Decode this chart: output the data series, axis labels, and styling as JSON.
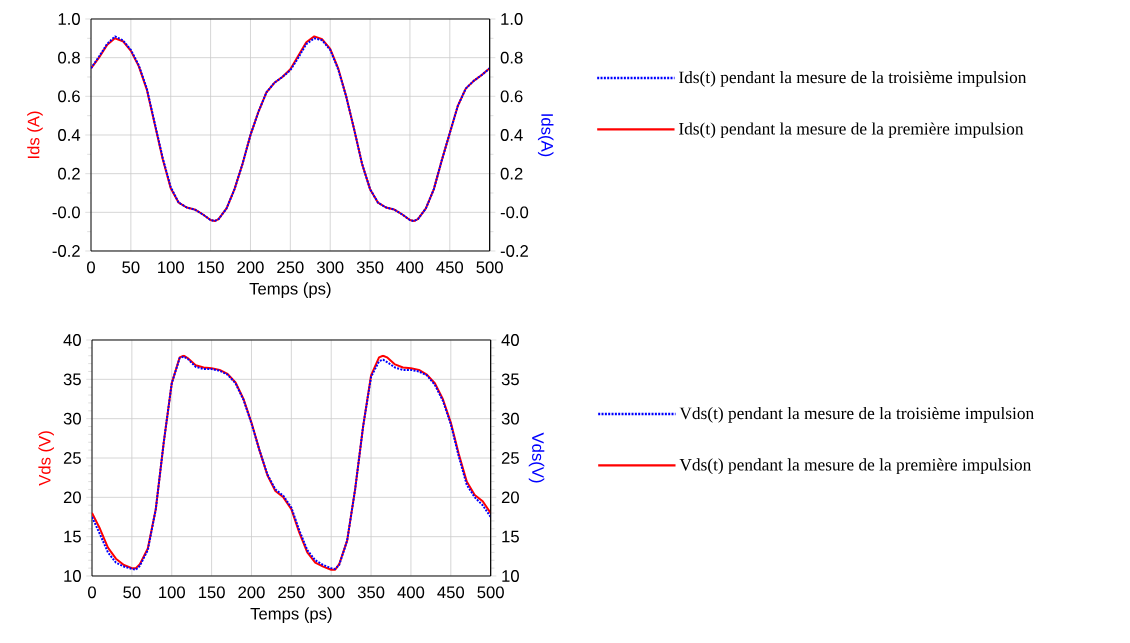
{
  "chart_data": [
    {
      "type": "line",
      "xlabel": "Temps (ps)",
      "ylabel": "Ids (A)",
      "y2label": "Ids(A)",
      "xlim": [
        0,
        500
      ],
      "xticks": [
        0,
        50,
        100,
        150,
        200,
        250,
        300,
        350,
        400,
        450,
        500
      ],
      "ylim": [
        -0.2,
        1.0
      ],
      "yticks": [
        -0.2,
        {
          "value": 0,
          "label": "-0.0"
        },
        0.2,
        0.4,
        0.6,
        0.8,
        {
          "value": 1,
          "label": "1.0"
        }
      ],
      "y2lim": [
        -0.2,
        1.0
      ],
      "y2ticks": [
        -0.2,
        {
          "value": 0,
          "label": "-0.0"
        },
        0.2,
        0.4,
        0.6,
        0.8,
        {
          "value": 1,
          "label": "1.0"
        }
      ],
      "grid": true,
      "legend": "right",
      "x": [
        0,
        10,
        20,
        30,
        40,
        50,
        60,
        70,
        80,
        90,
        100,
        110,
        120,
        130,
        140,
        150,
        155,
        160,
        170,
        180,
        190,
        200,
        210,
        220,
        230,
        240,
        250,
        260,
        270,
        280,
        290,
        300,
        310,
        320,
        330,
        340,
        350,
        360,
        370,
        380,
        390,
        400,
        405,
        410,
        420,
        430,
        440,
        450,
        460,
        470,
        480,
        490,
        500
      ],
      "series": [
        {
          "name": "Ids(t) pendant la mesure de la première impulsion",
          "color": "#ff0000",
          "line_style": "solid",
          "values": [
            0.745,
            0.8,
            0.865,
            0.9,
            0.885,
            0.835,
            0.755,
            0.635,
            0.455,
            0.275,
            0.125,
            0.05,
            0.025,
            0.015,
            -0.01,
            -0.04,
            -0.045,
            -0.035,
            0.02,
            0.12,
            0.25,
            0.4,
            0.52,
            0.62,
            0.67,
            0.7,
            0.74,
            0.81,
            0.88,
            0.91,
            0.895,
            0.845,
            0.745,
            0.6,
            0.43,
            0.25,
            0.12,
            0.05,
            0.025,
            0.015,
            -0.01,
            -0.04,
            -0.045,
            -0.035,
            0.02,
            0.12,
            0.27,
            0.41,
            0.55,
            0.64,
            0.68,
            0.71,
            0.745
          ]
        },
        {
          "name": "Ids(t) pendant la mesure de la troisième impulsion",
          "color": "#0000ff",
          "line_style": "dotted",
          "values": [
            0.745,
            0.805,
            0.87,
            0.91,
            0.89,
            0.84,
            0.76,
            0.64,
            0.46,
            0.28,
            0.13,
            0.05,
            0.025,
            0.015,
            -0.01,
            -0.04,
            -0.045,
            -0.035,
            0.02,
            0.12,
            0.25,
            0.4,
            0.52,
            0.62,
            0.67,
            0.7,
            0.735,
            0.8,
            0.87,
            0.9,
            0.89,
            0.84,
            0.74,
            0.6,
            0.43,
            0.25,
            0.12,
            0.05,
            0.025,
            0.015,
            -0.01,
            -0.04,
            -0.045,
            -0.035,
            0.02,
            0.12,
            0.27,
            0.41,
            0.55,
            0.64,
            0.68,
            0.71,
            0.745
          ]
        }
      ]
    },
    {
      "type": "line",
      "xlabel": "Temps (ps)",
      "ylabel": "Vds (V)",
      "y2label": "Vds(V)",
      "xlim": [
        0,
        500
      ],
      "xticks": [
        0,
        50,
        100,
        150,
        200,
        250,
        300,
        350,
        400,
        450,
        500
      ],
      "ylim": [
        10,
        40
      ],
      "yticks": [
        10,
        15,
        20,
        25,
        30,
        35,
        40
      ],
      "y2lim": [
        10,
        40
      ],
      "y2ticks": [
        10,
        15,
        20,
        25,
        30,
        35,
        40
      ],
      "grid": true,
      "legend": "right",
      "x": [
        0,
        10,
        20,
        30,
        40,
        50,
        55,
        60,
        70,
        80,
        90,
        100,
        110,
        115,
        120,
        130,
        140,
        150,
        160,
        170,
        180,
        190,
        200,
        210,
        220,
        230,
        240,
        250,
        260,
        270,
        280,
        290,
        300,
        305,
        310,
        320,
        330,
        340,
        350,
        360,
        365,
        370,
        380,
        390,
        400,
        410,
        420,
        430,
        440,
        450,
        460,
        470,
        480,
        490,
        500
      ],
      "series": [
        {
          "name": "Vds(t) pendant la mesure de la première impulsion",
          "color": "#ff0000",
          "line_style": "solid",
          "values": [
            18,
            16,
            13.6,
            12.2,
            11.4,
            11.0,
            11.0,
            11.5,
            13.5,
            18.5,
            27,
            34.5,
            37.8,
            38.0,
            37.7,
            36.8,
            36.5,
            36.4,
            36.2,
            35.7,
            34.6,
            32.5,
            29.5,
            26,
            22.8,
            20.8,
            20.0,
            18.5,
            15.5,
            13.0,
            11.7,
            11.2,
            10.8,
            10.8,
            11.5,
            14.5,
            21,
            29,
            35.5,
            37.8,
            38.0,
            37.8,
            36.9,
            36.5,
            36.4,
            36.2,
            35.6,
            34.5,
            32.5,
            29.5,
            25.5,
            22,
            20.3,
            19.5,
            18
          ]
        },
        {
          "name": "Vds(t) pendant la mesure de la troisième impulsion",
          "color": "#0000ff",
          "line_style": "dotted",
          "values": [
            17.5,
            15.3,
            13,
            11.7,
            11.2,
            10.9,
            10.8,
            11.3,
            13.3,
            18.5,
            27,
            34.5,
            37.7,
            37.9,
            37.6,
            36.6,
            36.3,
            36.3,
            36.1,
            35.6,
            34.5,
            32.4,
            29.4,
            26,
            22.9,
            21,
            20.2,
            18.7,
            15.8,
            13.3,
            12,
            11.4,
            11.0,
            10.9,
            11.4,
            14.5,
            21,
            29,
            35.3,
            37.3,
            37.5,
            37.2,
            36.5,
            36.2,
            36.2,
            36.0,
            35.5,
            34.3,
            32.3,
            29.3,
            25.2,
            21.6,
            20,
            19,
            17.5
          ]
        }
      ]
    }
  ]
}
